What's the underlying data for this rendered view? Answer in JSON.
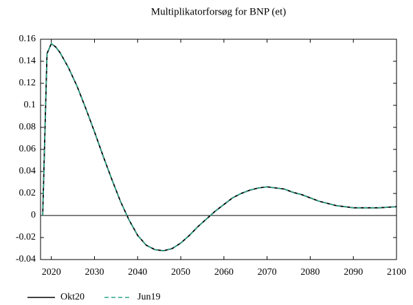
{
  "chart_data": {
    "type": "line",
    "title": "Multiplikatorforsøg for BNP (et)",
    "x": [
      2018,
      2019,
      2020,
      2021,
      2022,
      2024,
      2026,
      2028,
      2030,
      2032,
      2034,
      2036,
      2038,
      2040,
      2042,
      2044,
      2046,
      2048,
      2050,
      2052,
      2054,
      2056,
      2058,
      2060,
      2062,
      2064,
      2066,
      2068,
      2070,
      2072,
      2074,
      2076,
      2078,
      2080,
      2082,
      2084,
      2086,
      2088,
      2090,
      2092,
      2094,
      2096,
      2098,
      2100
    ],
    "series": [
      {
        "name": "Okt20",
        "color": "#000000",
        "dashed": false,
        "values": [
          0,
          0.147,
          0.156,
          0.153,
          0.148,
          0.134,
          0.117,
          0.097,
          0.076,
          0.054,
          0.033,
          0.013,
          -0.004,
          -0.018,
          -0.027,
          -0.031,
          -0.032,
          -0.03,
          -0.025,
          -0.018,
          -0.01,
          -0.003,
          0.004,
          0.01,
          0.016,
          0.02,
          0.023,
          0.025,
          0.026,
          0.025,
          0.024,
          0.021,
          0.019,
          0.016,
          0.013,
          0.011,
          0.009,
          0.008,
          0.007,
          0.007,
          0.007,
          0.007,
          0.0075,
          0.008
        ]
      },
      {
        "name": "Jun19",
        "color": "#2aa58a",
        "dashed": true,
        "values": [
          0,
          0.147,
          0.156,
          0.153,
          0.148,
          0.134,
          0.117,
          0.097,
          0.076,
          0.054,
          0.033,
          0.013,
          -0.004,
          -0.018,
          -0.027,
          -0.031,
          -0.032,
          -0.03,
          -0.025,
          -0.018,
          -0.01,
          -0.003,
          0.004,
          0.01,
          0.016,
          0.02,
          0.023,
          0.025,
          0.026,
          0.025,
          0.024,
          0.021,
          0.019,
          0.016,
          0.013,
          0.011,
          0.009,
          0.008,
          0.007,
          0.007,
          0.007,
          0.007,
          0.0075,
          0.008
        ]
      }
    ],
    "xlim": [
      2017.5,
      2100
    ],
    "xticks": [
      2020,
      2030,
      2040,
      2050,
      2060,
      2070,
      2080,
      2090,
      2100
    ],
    "ylim": [
      -0.04,
      0.16
    ],
    "yticks": [
      -0.04,
      -0.02,
      0,
      0.02,
      0.04,
      0.06,
      0.08,
      0.1,
      0.12,
      0.14,
      0.16
    ],
    "zero_line": true,
    "legend": "bottom-left"
  }
}
